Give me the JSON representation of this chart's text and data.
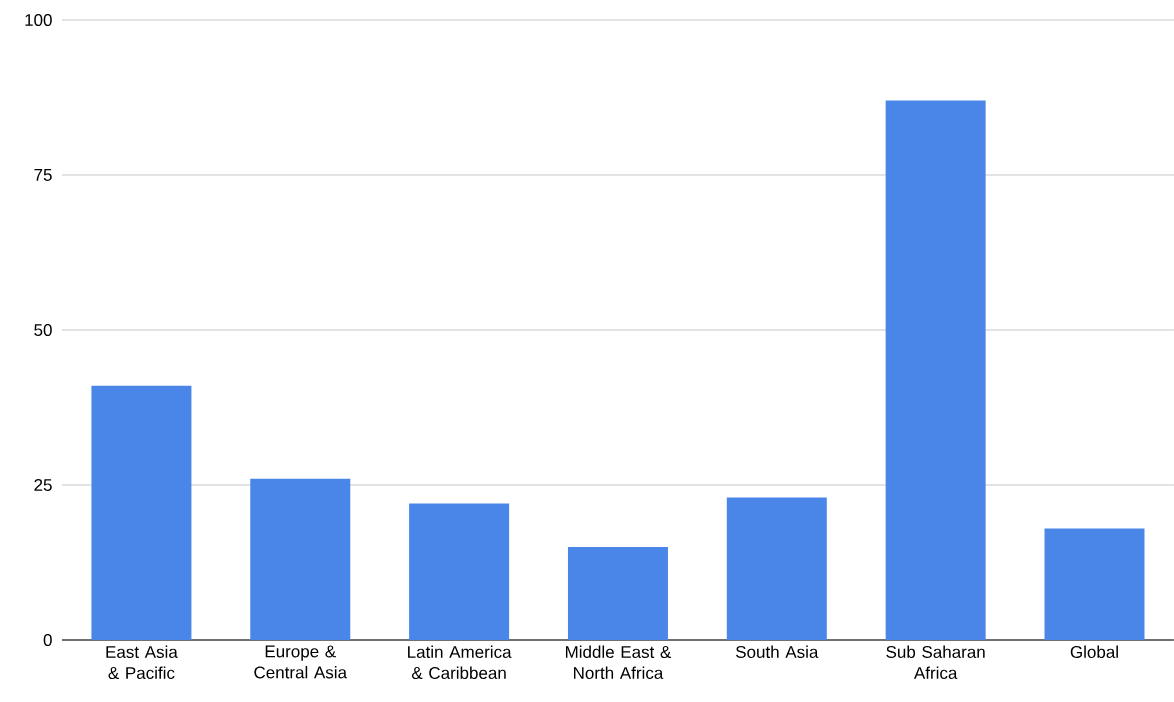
{
  "chart_data": {
    "type": "bar",
    "categories": [
      "East Asia & Pacific",
      "Europe & Central Asia",
      "Latin America & Caribbean",
      "Middle East & North Africa",
      "South Asia",
      "Sub Saharan Africa",
      "Global"
    ],
    "values": [
      41,
      26,
      22,
      15,
      23,
      87,
      18
    ],
    "color": "#4a86e8",
    "ylim": [
      0,
      100
    ],
    "yticks": [
      0,
      25,
      50,
      75,
      100
    ],
    "grid": "y"
  }
}
